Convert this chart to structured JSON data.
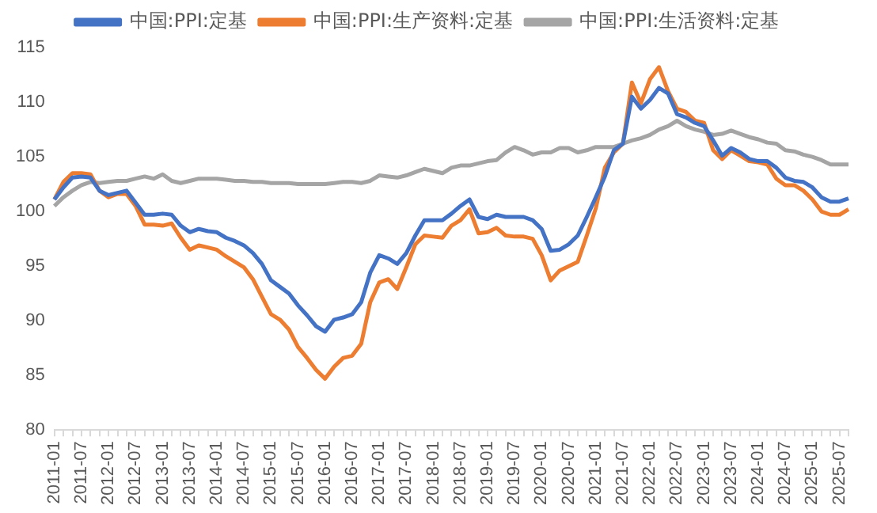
{
  "chart_data": {
    "type": "line",
    "categories": [
      "2011-01",
      null,
      null,
      "2011-07",
      null,
      null,
      "2012-01",
      null,
      null,
      "2012-07",
      null,
      null,
      "2013-01",
      null,
      null,
      "2013-07",
      null,
      null,
      "2014-01",
      null,
      null,
      "2014-07",
      null,
      null,
      "2015-01",
      null,
      null,
      "2015-07",
      null,
      null,
      "2016-01",
      null,
      null,
      "2016-07",
      null,
      null,
      "2017-01",
      null,
      null,
      "2017-07",
      null,
      null,
      "2018-01",
      null,
      null,
      "2018-07",
      null,
      null,
      "2019-01",
      null,
      null,
      "2019-07",
      null,
      null,
      "2020-01",
      null,
      null,
      "2020-07",
      null,
      null,
      "2021-01",
      null,
      null,
      "2021-07",
      null,
      null,
      "2022-01",
      null,
      null,
      "2022-07",
      null,
      null,
      "2023-01",
      null,
      null,
      "2023-07",
      null,
      null,
      "2024-01",
      null,
      null,
      "2024-07",
      null,
      null,
      "2025-01",
      null,
      null,
      "2025-07",
      null
    ],
    "series": [
      {
        "name": "中国:PPI:定基",
        "color": "#4472c4",
        "values": [
          101.1,
          102.2,
          103.1,
          103.2,
          103.1,
          101.9,
          101.5,
          101.7,
          101.9,
          100.8,
          99.7,
          99.7,
          99.8,
          99.7,
          98.7,
          98.1,
          98.4,
          98.2,
          98.1,
          97.6,
          97.3,
          96.9,
          96.2,
          95.2,
          93.7,
          93.1,
          92.5,
          91.4,
          90.5,
          89.5,
          89.0,
          90.1,
          90.3,
          90.6,
          91.7,
          94.4,
          96.0,
          95.7,
          95.2,
          96.2,
          97.8,
          99.2,
          99.2,
          99.2,
          99.8,
          100.5,
          101.1,
          99.5,
          99.3,
          99.7,
          99.5,
          99.5,
          99.5,
          99.2,
          98.4,
          96.4,
          96.5,
          97.0,
          97.8,
          99.5,
          101.3,
          103.2,
          105.6,
          106.2,
          110.5,
          109.4,
          110.2,
          111.3,
          110.8,
          108.9,
          108.6,
          108.1,
          107.8,
          106.5,
          105.1,
          105.8,
          105.4,
          104.8,
          104.6,
          104.6,
          104.0,
          103.1,
          102.8,
          102.7,
          102.2,
          101.3,
          100.9,
          100.9,
          101.2
        ]
      },
      {
        "name": "中国:PPI:生产资料:定基",
        "color": "#ed7d31",
        "values": [
          101.1,
          102.7,
          103.5,
          103.5,
          103.4,
          101.9,
          101.3,
          101.6,
          101.6,
          100.5,
          98.8,
          98.8,
          98.7,
          98.9,
          97.6,
          96.5,
          96.9,
          96.7,
          96.5,
          95.9,
          95.4,
          94.9,
          93.8,
          92.2,
          90.6,
          90.1,
          89.2,
          87.6,
          86.6,
          85.5,
          84.7,
          85.8,
          86.6,
          86.8,
          87.9,
          91.7,
          93.5,
          93.8,
          92.9,
          94.9,
          97.0,
          97.8,
          97.7,
          97.6,
          98.7,
          99.2,
          100.2,
          98.0,
          98.1,
          98.5,
          97.8,
          97.7,
          97.7,
          97.5,
          96.0,
          93.7,
          94.6,
          95.0,
          95.4,
          97.8,
          100.3,
          104.0,
          105.4,
          106.2,
          111.8,
          109.9,
          112.1,
          113.2,
          111.0,
          109.4,
          109.1,
          108.3,
          108.1,
          105.6,
          104.8,
          105.6,
          105.1,
          104.6,
          104.5,
          104.3,
          103.0,
          102.4,
          102.4,
          101.9,
          101.1,
          100.0,
          99.7,
          99.7,
          100.2
        ]
      },
      {
        "name": "中国:PPI:生活资料:定基",
        "color": "#a5a5a5",
        "values": [
          100.5,
          101.3,
          101.9,
          102.4,
          102.7,
          102.6,
          102.7,
          102.8,
          102.8,
          103.0,
          103.2,
          103.0,
          103.4,
          102.8,
          102.6,
          102.8,
          103.0,
          103.0,
          103.0,
          102.9,
          102.8,
          102.8,
          102.7,
          102.7,
          102.6,
          102.6,
          102.6,
          102.5,
          102.5,
          102.5,
          102.5,
          102.6,
          102.7,
          102.7,
          102.6,
          102.8,
          103.3,
          103.2,
          103.1,
          103.3,
          103.6,
          103.9,
          103.7,
          103.5,
          104.0,
          104.2,
          104.2,
          104.4,
          104.6,
          104.7,
          105.4,
          105.9,
          105.6,
          105.2,
          105.4,
          105.4,
          105.8,
          105.8,
          105.4,
          105.6,
          105.9,
          105.9,
          105.9,
          106.2,
          106.5,
          106.7,
          107.0,
          107.5,
          107.8,
          108.3,
          107.8,
          107.5,
          107.3,
          107.0,
          107.1,
          107.4,
          107.1,
          106.8,
          106.6,
          106.3,
          106.2,
          105.6,
          105.5,
          105.2,
          105.0,
          104.7,
          104.3,
          104.3,
          104.3
        ]
      }
    ],
    "ylim": [
      80,
      115
    ],
    "yticks": [
      80,
      85,
      90,
      95,
      100,
      105,
      110,
      115
    ],
    "grid": false,
    "legend": "top",
    "marker": "none",
    "line_style": "solid"
  }
}
